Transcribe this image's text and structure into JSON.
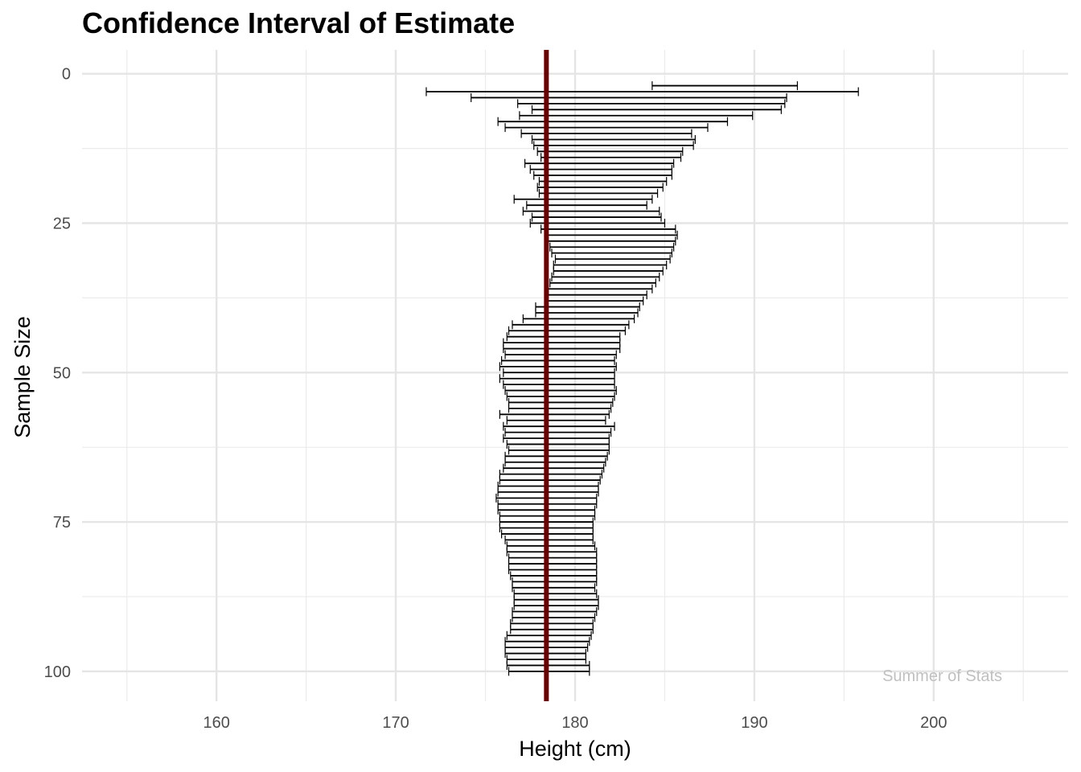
{
  "chart_data": {
    "type": "errorbar",
    "title": "Confidence Interval of Estimate",
    "xlabel": "Height (cm)",
    "ylabel": "Sample Size",
    "caption": "Summer of Stats",
    "xlim": [
      152.5,
      207.5
    ],
    "ylim": [
      105,
      -4
    ],
    "y_reversed": true,
    "grid": true,
    "x_ticks": [
      160,
      170,
      180,
      190,
      200
    ],
    "y_ticks": [
      0,
      25,
      50,
      75,
      100
    ],
    "reference_line": {
      "x": 178.4,
      "color": "#6b0000"
    },
    "series": [
      {
        "y": [
          2,
          3,
          4,
          5,
          6,
          7,
          8,
          9,
          10,
          11,
          12,
          13,
          14,
          15,
          16,
          17,
          18,
          19,
          20,
          21,
          22,
          23,
          24,
          25,
          26,
          27,
          28,
          29,
          30,
          31,
          32,
          33,
          34,
          35,
          36,
          37,
          38,
          39,
          40,
          41,
          42,
          43,
          44,
          45,
          46,
          47,
          48,
          49,
          50,
          51,
          52,
          53,
          54,
          55,
          56,
          57,
          58,
          59,
          60,
          61,
          62,
          63,
          64,
          65,
          66,
          67,
          68,
          69,
          70,
          71,
          72,
          73,
          74,
          75,
          76,
          77,
          78,
          79,
          80,
          81,
          82,
          83,
          84,
          85,
          86,
          87,
          88,
          89,
          90,
          91,
          92,
          93,
          94,
          95,
          96,
          97,
          98,
          99,
          100
        ],
        "lower": [
          184.3,
          171.7,
          174.2,
          176.8,
          177.6,
          176.9,
          175.7,
          176.1,
          177.0,
          177.6,
          177.7,
          177.9,
          178.1,
          177.2,
          177.5,
          177.7,
          178.0,
          177.9,
          178.0,
          176.6,
          177.3,
          177.1,
          177.6,
          177.5,
          178.1,
          178.4,
          178.5,
          178.6,
          178.7,
          178.9,
          178.8,
          178.8,
          178.7,
          178.6,
          178.5,
          178.5,
          178.3,
          177.8,
          177.8,
          177.1,
          176.5,
          176.3,
          176.2,
          176.0,
          176.0,
          176.1,
          175.9,
          175.8,
          176.0,
          175.8,
          176.0,
          176.1,
          176.2,
          176.3,
          176.3,
          175.8,
          176.2,
          176.0,
          176.1,
          176.0,
          176.2,
          176.3,
          176.1,
          176.1,
          176.0,
          175.8,
          175.8,
          175.7,
          175.7,
          175.6,
          175.7,
          175.7,
          175.8,
          175.8,
          175.8,
          175.9,
          176.1,
          176.2,
          176.2,
          176.3,
          176.3,
          176.3,
          176.4,
          176.5,
          176.5,
          176.6,
          176.6,
          176.6,
          176.5,
          176.5,
          176.4,
          176.4,
          176.2,
          176.1,
          176.1,
          176.1,
          176.2,
          176.2,
          176.3
        ],
        "upper": [
          192.4,
          195.8,
          191.8,
          191.7,
          191.5,
          189.9,
          188.5,
          187.4,
          186.5,
          186.7,
          186.6,
          186.0,
          185.9,
          185.5,
          185.4,
          185.4,
          185.1,
          184.9,
          184.6,
          184.3,
          184.0,
          184.7,
          184.8,
          185.0,
          185.6,
          185.7,
          185.6,
          185.5,
          185.4,
          185.3,
          185.1,
          184.9,
          184.7,
          184.5,
          184.3,
          184.0,
          183.8,
          183.6,
          183.5,
          183.3,
          183.0,
          182.8,
          182.5,
          182.5,
          182.5,
          182.3,
          182.2,
          182.3,
          182.2,
          182.2,
          182.2,
          182.3,
          182.2,
          182.1,
          182.0,
          181.9,
          181.7,
          182.2,
          182.0,
          181.9,
          181.9,
          181.9,
          181.8,
          181.7,
          181.6,
          181.5,
          181.4,
          181.3,
          181.3,
          181.2,
          181.2,
          181.1,
          181.1,
          181.0,
          181.0,
          181.0,
          181.0,
          181.1,
          181.2,
          181.2,
          181.2,
          181.2,
          181.2,
          181.2,
          181.1,
          181.2,
          181.3,
          181.3,
          181.2,
          181.1,
          181.0,
          181.0,
          180.9,
          180.8,
          180.7,
          180.6,
          180.6,
          180.8,
          180.8
        ]
      }
    ]
  }
}
